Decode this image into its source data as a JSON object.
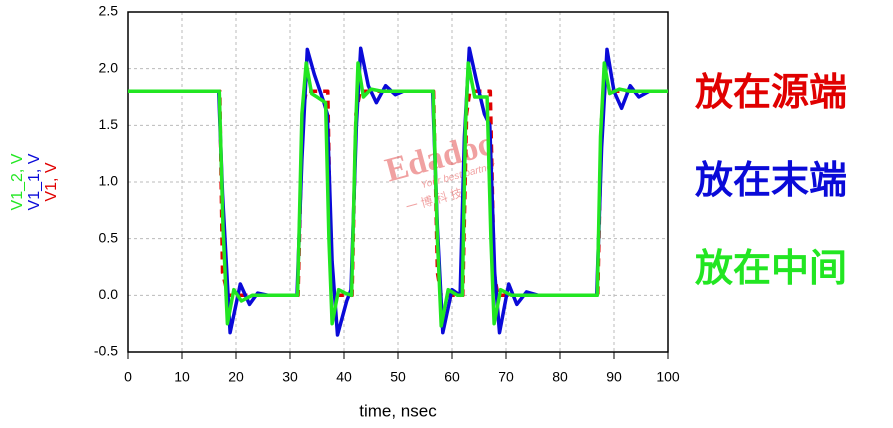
{
  "chart_data": {
    "type": "line",
    "x_label": "time, nsec",
    "xlim": [
      0,
      100
    ],
    "xticks": [
      0,
      10,
      20,
      30,
      40,
      50,
      60,
      70,
      80,
      90,
      100
    ],
    "ylim": [
      -0.5,
      2.5
    ],
    "yticks": [
      -0.5,
      {
        "value": 0,
        "label": "0.0"
      },
      0.5,
      {
        "value": 1,
        "label": "1.0"
      },
      1.5,
      {
        "value": 2,
        "label": "2.0"
      },
      2.5
    ],
    "grid": true,
    "series": [
      {
        "name": "V1, V",
        "color": "#e00000",
        "style": "dashed",
        "x": [
          0,
          17,
          17.5,
          18.5,
          31.5,
          32.3,
          33,
          37,
          37.6,
          38.3,
          41.5,
          42.2,
          43,
          56.6,
          57.3,
          58,
          62,
          62.7,
          63.3,
          67.1,
          67.8,
          68.5,
          87,
          87.7,
          88.3,
          100
        ],
        "values": [
          1.8,
          1.8,
          0.2,
          0,
          0,
          1.6,
          1.8,
          1.8,
          0.2,
          0,
          0,
          1.6,
          1.8,
          1.8,
          0.2,
          0,
          0,
          1.6,
          1.8,
          1.8,
          0.2,
          0,
          0,
          1.6,
          1.8,
          1.8
        ]
      },
      {
        "name": "V1_1, V",
        "color": "#0a0ad8",
        "style": "solid",
        "x": [
          0,
          16.8,
          17.5,
          18.9,
          20.8,
          22.5,
          24,
          26,
          31.3,
          32.2,
          33.2,
          34.5,
          36.3,
          36.9,
          37.8,
          38.8,
          40.5,
          41.3,
          42.3,
          43.1,
          44.5,
          46,
          47.7,
          49.5,
          51,
          56.4,
          57.3,
          58.3,
          60,
          61.5,
          62.3,
          63.2,
          64.5,
          66,
          67,
          67.9,
          68.8,
          70.5,
          72,
          73.8,
          76,
          86.8,
          87.7,
          88.7,
          90,
          91.4,
          93,
          94.6,
          96.5,
          100
        ],
        "values": [
          1.8,
          1.8,
          0.9,
          -0.33,
          0.1,
          -0.08,
          0.02,
          0,
          0,
          1.2,
          2.17,
          1.95,
          1.7,
          1.6,
          0.3,
          -0.35,
          -0.05,
          0.05,
          1.5,
          2.18,
          1.85,
          1.7,
          1.85,
          1.77,
          1.8,
          1.8,
          0.6,
          -0.33,
          0.05,
          0,
          1.4,
          2.18,
          1.9,
          1.6,
          1.5,
          0.2,
          -0.33,
          0.1,
          -0.08,
          0.03,
          0,
          0,
          1.3,
          2.17,
          1.8,
          1.65,
          1.85,
          1.75,
          1.8,
          1.8
        ]
      },
      {
        "name": "V1_2, V",
        "color": "#22e622",
        "style": "solid",
        "x": [
          0,
          16.9,
          17.6,
          18.4,
          19.6,
          21,
          23,
          31.4,
          32.2,
          33,
          34,
          35,
          36.6,
          37.2,
          37.8,
          39,
          40.2,
          41.4,
          42.1,
          42.6,
          43.6,
          45,
          47,
          56.5,
          57.3,
          58,
          59.3,
          61,
          61.9,
          62.5,
          63,
          64.2,
          66.5,
          67.2,
          67.8,
          69,
          71,
          86.9,
          87.5,
          88.2,
          89.2,
          91,
          93,
          100
        ],
        "values": [
          1.8,
          1.8,
          0.6,
          -0.25,
          0.05,
          -0.05,
          0,
          0,
          1.6,
          2.05,
          1.78,
          1.75,
          1.7,
          0.5,
          -0.25,
          0.05,
          0.02,
          0,
          1.4,
          2.05,
          1.75,
          1.82,
          1.8,
          1.8,
          0.5,
          -0.27,
          0.05,
          0,
          0,
          1.5,
          2.05,
          1.75,
          1.75,
          0.5,
          -0.25,
          0.05,
          0,
          0,
          1.4,
          2.05,
          1.78,
          1.82,
          1.8,
          1.8
        ]
      }
    ],
    "annotations": [
      {
        "text": "放在源端",
        "color": "#e00000"
      },
      {
        "text": "放在末端",
        "color": "#0a0ad8"
      },
      {
        "text": "放在中间",
        "color": "#22e622"
      }
    ],
    "watermark": [
      "Edadoc",
      "Your best partner",
      "一 博 科 技"
    ]
  }
}
